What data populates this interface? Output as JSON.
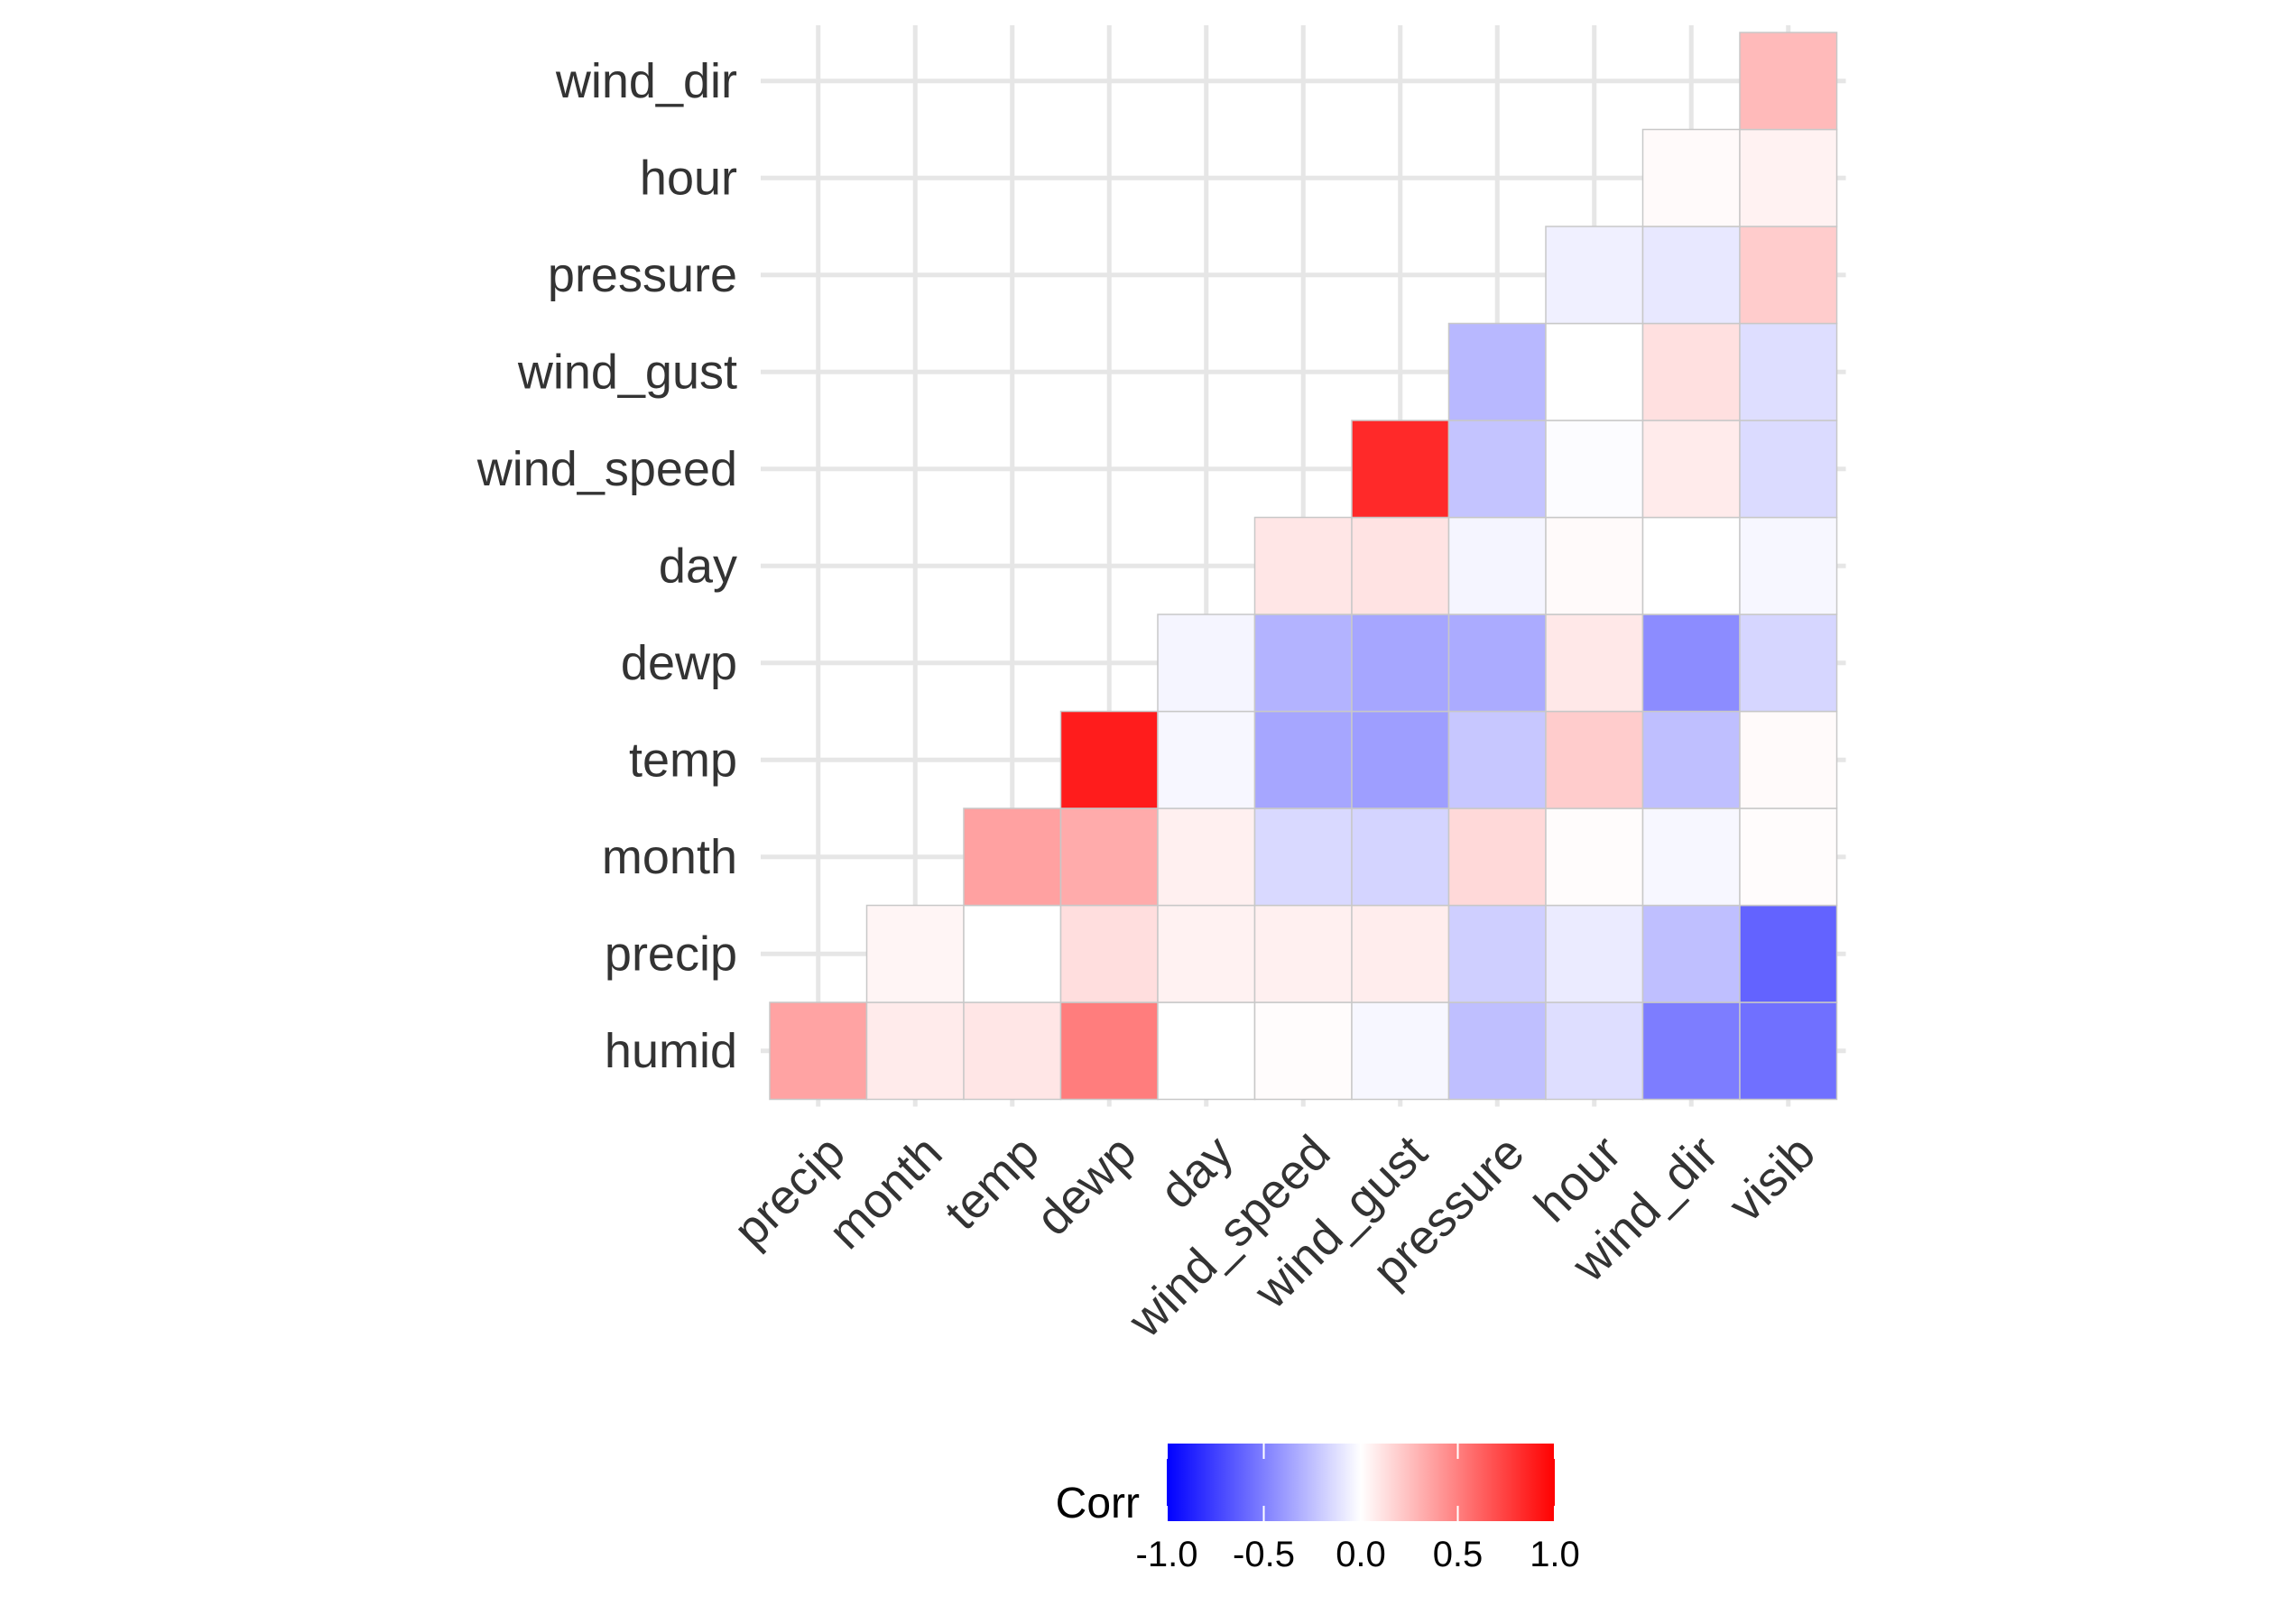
{
  "chart_data": {
    "type": "heatmap",
    "title": "",
    "xlabel": "",
    "ylabel": "",
    "x_categories": [
      "precip",
      "month",
      "temp",
      "dewp",
      "day",
      "wind_speed",
      "wind_gust",
      "pressure",
      "hour",
      "wind_dir",
      "visib"
    ],
    "y_categories": [
      "humid",
      "precip",
      "month",
      "temp",
      "dewp",
      "day",
      "wind_speed",
      "wind_gust",
      "pressure",
      "hour",
      "wind_dir"
    ],
    "cells": [
      {
        "x": "precip",
        "y": "humid",
        "value": 0.36
      },
      {
        "x": "month",
        "y": "humid",
        "value": 0.08
      },
      {
        "x": "temp",
        "y": "humid",
        "value": 0.1
      },
      {
        "x": "dewp",
        "y": "humid",
        "value": 0.51
      },
      {
        "x": "day",
        "y": "humid",
        "value": 0.0
      },
      {
        "x": "wind_speed",
        "y": "humid",
        "value": 0.01
      },
      {
        "x": "wind_gust",
        "y": "humid",
        "value": -0.03
      },
      {
        "x": "pressure",
        "y": "humid",
        "value": -0.25
      },
      {
        "x": "hour",
        "y": "humid",
        "value": -0.13
      },
      {
        "x": "wind_dir",
        "y": "humid",
        "value": -0.51
      },
      {
        "x": "visib",
        "y": "humid",
        "value": -0.56
      },
      {
        "x": "month",
        "y": "precip",
        "value": 0.04
      },
      {
        "x": "temp",
        "y": "precip",
        "value": 0.0
      },
      {
        "x": "dewp",
        "y": "precip",
        "value": 0.13
      },
      {
        "x": "day",
        "y": "precip",
        "value": 0.05
      },
      {
        "x": "wind_speed",
        "y": "precip",
        "value": 0.06
      },
      {
        "x": "wind_gust",
        "y": "precip",
        "value": 0.07
      },
      {
        "x": "pressure",
        "y": "precip",
        "value": -0.19
      },
      {
        "x": "hour",
        "y": "precip",
        "value": -0.08
      },
      {
        "x": "wind_dir",
        "y": "precip",
        "value": -0.25
      },
      {
        "x": "visib",
        "y": "precip",
        "value": -0.61
      },
      {
        "x": "temp",
        "y": "month",
        "value": 0.37
      },
      {
        "x": "dewp",
        "y": "month",
        "value": 0.33
      },
      {
        "x": "day",
        "y": "month",
        "value": 0.06
      },
      {
        "x": "wind_speed",
        "y": "month",
        "value": -0.15
      },
      {
        "x": "wind_gust",
        "y": "month",
        "value": -0.17
      },
      {
        "x": "pressure",
        "y": "month",
        "value": 0.15
      },
      {
        "x": "hour",
        "y": "month",
        "value": 0.01
      },
      {
        "x": "wind_dir",
        "y": "month",
        "value": -0.03
      },
      {
        "x": "visib",
        "y": "month",
        "value": 0.01
      },
      {
        "x": "dewp",
        "y": "temp",
        "value": 0.89
      },
      {
        "x": "day",
        "y": "temp",
        "value": -0.03
      },
      {
        "x": "wind_speed",
        "y": "temp",
        "value": -0.35
      },
      {
        "x": "wind_gust",
        "y": "temp",
        "value": -0.38
      },
      {
        "x": "pressure",
        "y": "temp",
        "value": -0.22
      },
      {
        "x": "hour",
        "y": "temp",
        "value": 0.2
      },
      {
        "x": "wind_dir",
        "y": "temp",
        "value": -0.25
      },
      {
        "x": "visib",
        "y": "temp",
        "value": 0.02
      },
      {
        "x": "day",
        "y": "dewp",
        "value": -0.04
      },
      {
        "x": "wind_speed",
        "y": "dewp",
        "value": -0.3
      },
      {
        "x": "wind_gust",
        "y": "dewp",
        "value": -0.35
      },
      {
        "x": "pressure",
        "y": "dewp",
        "value": -0.33
      },
      {
        "x": "hour",
        "y": "dewp",
        "value": 0.09
      },
      {
        "x": "wind_dir",
        "y": "dewp",
        "value": -0.45
      },
      {
        "x": "visib",
        "y": "dewp",
        "value": -0.16
      },
      {
        "x": "wind_speed",
        "y": "day",
        "value": 0.1
      },
      {
        "x": "wind_gust",
        "y": "day",
        "value": 0.11
      },
      {
        "x": "pressure",
        "y": "day",
        "value": -0.04
      },
      {
        "x": "hour",
        "y": "day",
        "value": 0.02
      },
      {
        "x": "wind_dir",
        "y": "day",
        "value": 0.0
      },
      {
        "x": "visib",
        "y": "day",
        "value": -0.03
      },
      {
        "x": "wind_gust",
        "y": "wind_speed",
        "value": 0.84
      },
      {
        "x": "pressure",
        "y": "wind_speed",
        "value": -0.23
      },
      {
        "x": "hour",
        "y": "wind_speed",
        "value": -0.01
      },
      {
        "x": "wind_dir",
        "y": "wind_speed",
        "value": 0.08
      },
      {
        "x": "visib",
        "y": "wind_speed",
        "value": -0.14
      },
      {
        "x": "pressure",
        "y": "wind_gust",
        "value": -0.28
      },
      {
        "x": "hour",
        "y": "wind_gust",
        "value": 0.0
      },
      {
        "x": "wind_dir",
        "y": "wind_gust",
        "value": 0.12
      },
      {
        "x": "visib",
        "y": "wind_gust",
        "value": -0.13
      },
      {
        "x": "hour",
        "y": "pressure",
        "value": -0.06
      },
      {
        "x": "wind_dir",
        "y": "pressure",
        "value": -0.09
      },
      {
        "x": "visib",
        "y": "pressure",
        "value": 0.2
      },
      {
        "x": "wind_dir",
        "y": "hour",
        "value": 0.02
      },
      {
        "x": "visib",
        "y": "hour",
        "value": 0.05
      },
      {
        "x": "visib",
        "y": "wind_dir",
        "value": 0.27
      }
    ],
    "color_scale": {
      "low": "#0000ff",
      "mid": "#ffffff",
      "high": "#ff0000",
      "limits": [
        -1,
        1
      ]
    },
    "legend": {
      "title": "Corr",
      "position": "bottom",
      "ticks": [
        -1.0,
        -0.5,
        0.0,
        0.5,
        1.0
      ],
      "tick_labels": [
        "-1.0",
        "-0.5",
        "0.0",
        "0.5",
        "1.0"
      ]
    },
    "grid": true
  }
}
